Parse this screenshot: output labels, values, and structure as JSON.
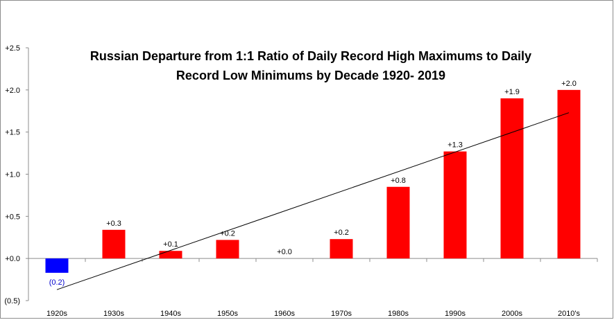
{
  "chart_data": {
    "type": "bar",
    "title_lines": [
      "Russian  Departure  from 1:1 Ratio of Daily Record High Maximums to Daily",
      "Record Low Minimums  by Decade 1920- 2019"
    ],
    "categories": [
      "1920s",
      "1930s",
      "1940s",
      "1950s",
      "1960s",
      "1970s",
      "1980s",
      "1990s",
      "2000s",
      "2010's"
    ],
    "values": [
      -0.17,
      0.34,
      0.09,
      0.22,
      0.0,
      0.23,
      0.85,
      1.27,
      1.9,
      2.0
    ],
    "data_labels": [
      "(0.2)",
      "+0.3",
      "+0.1",
      "+0.2",
      "+0.0",
      "+0.2",
      "+0.8",
      "+1.3",
      "+1.9",
      "+2.0"
    ],
    "y_tick_values": [
      -0.5,
      0.0,
      0.5,
      1.0,
      1.5,
      2.0,
      2.5
    ],
    "y_tick_labels": [
      "(0.5)",
      "+0.0",
      "+0.5",
      "+1.0",
      "+1.5",
      "+2.0",
      "+2.5"
    ],
    "ylim": [
      -0.5,
      2.5
    ],
    "trendline": {
      "start": -0.37,
      "end": 1.73
    },
    "gridlines": false,
    "legend": "none",
    "colors": {
      "positive": "#ff0000",
      "negative": "#0000ff",
      "negative_label": "#0000cc",
      "trendline": "#000000"
    }
  }
}
